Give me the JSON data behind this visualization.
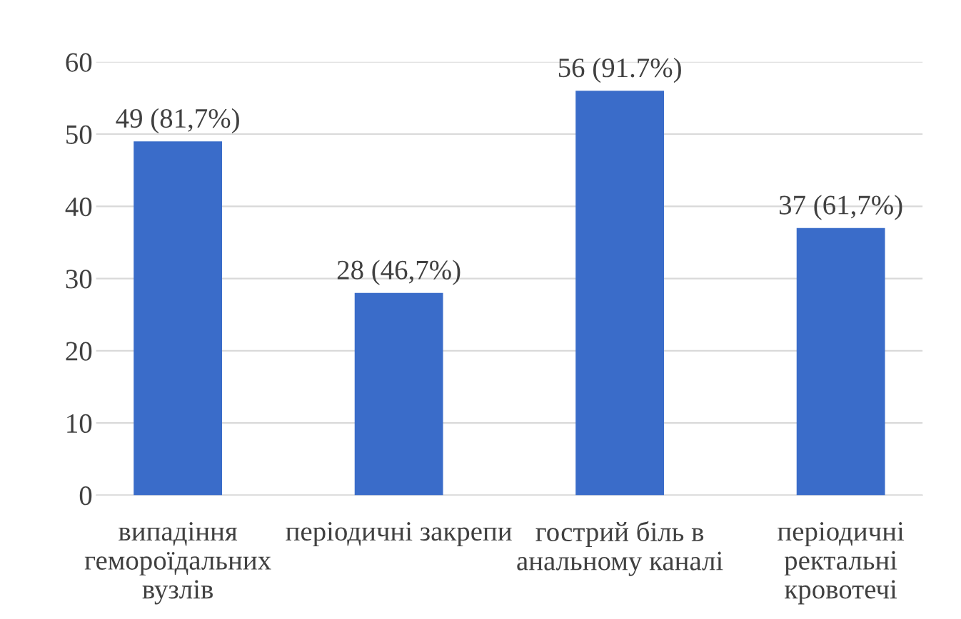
{
  "chart_data": {
    "type": "bar",
    "categories": [
      "випадіння гемороїдальних вузлів",
      "періодичні закрепи",
      "гострий біль в анальному каналі",
      "періодичні ректальні кровотечі"
    ],
    "values": [
      49,
      28,
      56,
      37
    ],
    "value_labels": [
      "49 (81,7%)",
      "28 (46,7%)",
      "56 (91.7%)",
      "37 (61,7%)"
    ],
    "color": "#3a6cc9",
    "ylim": [
      0,
      60
    ],
    "yticks": [
      0,
      10,
      20,
      30,
      40,
      50,
      60
    ],
    "grid": "y",
    "legend": false
  }
}
